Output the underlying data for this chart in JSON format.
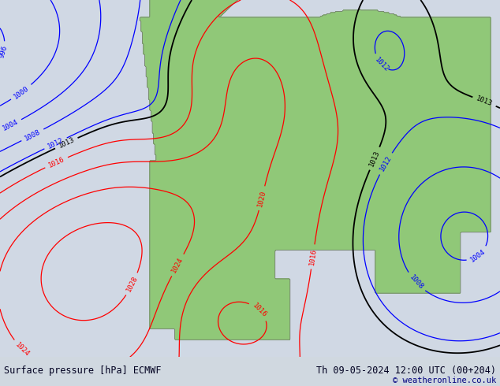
{
  "title_left": "Surface pressure [hPa] ECMWF",
  "title_right": "Th 09-05-2024 12:00 UTC (00+204)",
  "copyright": "© weatheronline.co.uk",
  "bg_color": "#d0d8e0",
  "land_color_bright": "#90c878",
  "land_color_dark": "#808080",
  "ocean_color": "#d0d8e4",
  "fig_width": 6.34,
  "fig_height": 4.9,
  "dpi": 100,
  "bottom_bar_color": "#d8e4ec",
  "bottom_text_color": "#000020",
  "copyright_color": "#000080"
}
